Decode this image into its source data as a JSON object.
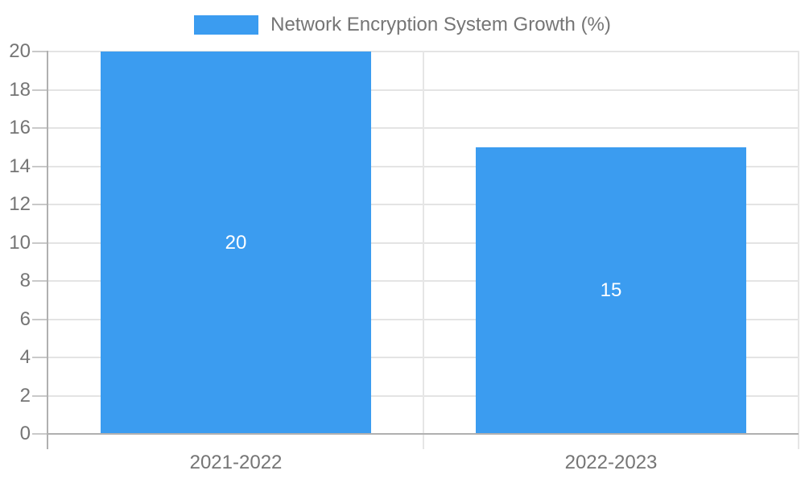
{
  "colors": {
    "bar": "#3b9cf0",
    "text": "#757575",
    "grid": "#e4e4e4",
    "tick": "#c9c9c9",
    "axis": "#b0b0b0",
    "value_label": "#ffffff"
  },
  "chart_data": {
    "type": "bar",
    "legend": "Network Encryption System Growth (%)",
    "legend_position": "top",
    "categories": [
      "2021-2022",
      "2022-2023"
    ],
    "values": [
      20,
      15
    ],
    "value_labels": [
      "20",
      "15"
    ],
    "title": "",
    "xlabel": "",
    "ylabel": "",
    "ylim": [
      0,
      20
    ],
    "ytick_step": 2,
    "grid": true
  }
}
